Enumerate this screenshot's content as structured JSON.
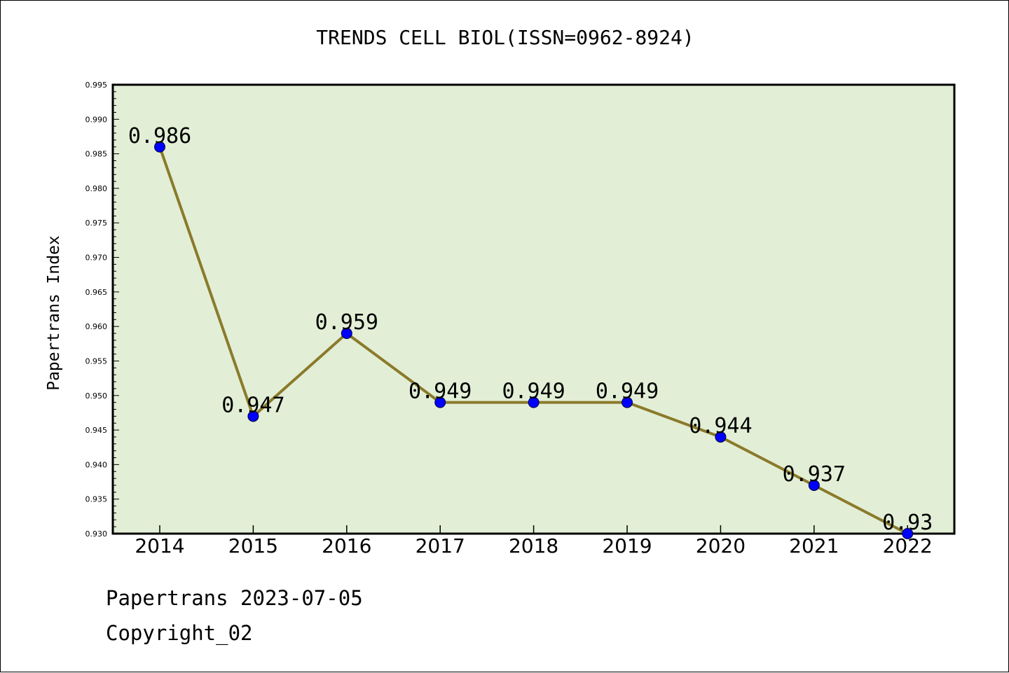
{
  "chart_data": {
    "type": "line",
    "title": "TRENDS CELL BIOL(ISSN=0962-8924)",
    "xlabel": "",
    "ylabel": "Papertrans Index",
    "categories": [
      "2014",
      "2015",
      "2016",
      "2017",
      "2018",
      "2019",
      "2020",
      "2021",
      "2022"
    ],
    "series": [
      {
        "values": [
          0.986,
          0.947,
          0.959,
          0.949,
          0.949,
          0.949,
          0.944,
          0.937,
          0.93
        ],
        "labels": [
          "0.986",
          "0.947",
          "0.959",
          "0.949",
          "0.949",
          "0.949",
          "0.944",
          "0.937",
          "0.93"
        ]
      }
    ],
    "ylim": [
      0.93,
      0.995
    ],
    "yticks": [
      "0.930",
      "0.935",
      "0.940",
      "0.945",
      "0.950",
      "0.955",
      "0.960",
      "0.965",
      "0.970",
      "0.975",
      "0.980",
      "0.985",
      "0.990",
      "0.995"
    ],
    "grid": false,
    "legend": "none",
    "colors": {
      "plot_background": "#e2efd6",
      "line": "#8b7a2b",
      "marker": "#0000ff"
    }
  },
  "footer": {
    "date_line": "Papertrans 2023-07-05",
    "copyright_line": "Copyright_02"
  }
}
